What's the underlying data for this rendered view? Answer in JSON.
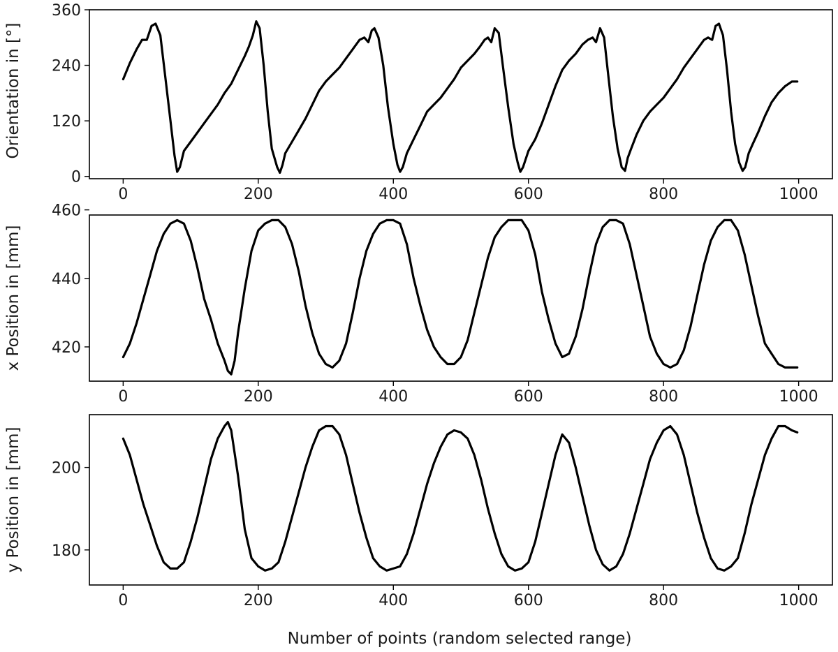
{
  "chart_data": [
    {
      "type": "line",
      "title": "",
      "xlabel": "",
      "ylabel": "Orientation in [°]",
      "xlim": [
        -50,
        1050
      ],
      "ylim": [
        -5,
        360
      ],
      "xticks": [
        0,
        200,
        400,
        600,
        800,
        1000
      ],
      "yticks": [
        0,
        120,
        240,
        360
      ],
      "grid": false,
      "series": [
        {
          "x": [
            0,
            10,
            20,
            28,
            35,
            42,
            48,
            55,
            62,
            70,
            76,
            80,
            84,
            90,
            100,
            110,
            120,
            130,
            140,
            150,
            160,
            170,
            180,
            186,
            192,
            197,
            202,
            208,
            214,
            220,
            228,
            232,
            236,
            240,
            250,
            260,
            270,
            280,
            290,
            300,
            310,
            320,
            330,
            340,
            350,
            357,
            363,
            368,
            372,
            378,
            385,
            392,
            400,
            406,
            410,
            414,
            420,
            430,
            440,
            450,
            460,
            470,
            480,
            490,
            500,
            510,
            520,
            528,
            535,
            540,
            545,
            550,
            556,
            562,
            570,
            578,
            584,
            588,
            592,
            600,
            610,
            620,
            630,
            640,
            650,
            660,
            670,
            680,
            688,
            695,
            700,
            706,
            712,
            718,
            725,
            732,
            738,
            743,
            747,
            752,
            760,
            770,
            780,
            790,
            800,
            810,
            820,
            830,
            840,
            850,
            860,
            866,
            872,
            877,
            882,
            888,
            894,
            900,
            906,
            912,
            917,
            921,
            926,
            932,
            940,
            950,
            960,
            970,
            980,
            990,
            998
          ],
          "y": [
            210,
            245,
            275,
            295,
            295,
            325,
            330,
            305,
            220,
            120,
            45,
            10,
            20,
            55,
            75,
            95,
            115,
            135,
            155,
            180,
            200,
            230,
            260,
            280,
            305,
            335,
            320,
            240,
            140,
            60,
            20,
            8,
            25,
            50,
            75,
            100,
            125,
            155,
            185,
            205,
            220,
            235,
            255,
            275,
            295,
            300,
            290,
            315,
            320,
            300,
            240,
            150,
            70,
            25,
            10,
            20,
            50,
            80,
            110,
            140,
            155,
            170,
            190,
            210,
            235,
            250,
            265,
            280,
            295,
            300,
            290,
            320,
            310,
            240,
            150,
            70,
            30,
            10,
            20,
            55,
            80,
            115,
            155,
            195,
            230,
            250,
            265,
            285,
            295,
            300,
            290,
            320,
            300,
            220,
            130,
            60,
            20,
            12,
            40,
            60,
            90,
            120,
            140,
            155,
            170,
            190,
            210,
            235,
            255,
            275,
            295,
            300,
            295,
            325,
            330,
            305,
            230,
            140,
            70,
            30,
            12,
            20,
            50,
            70,
            95,
            130,
            160,
            180,
            195,
            205,
            205
          ]
        }
      ]
    },
    {
      "type": "line",
      "title": "",
      "xlabel": "",
      "ylabel": "x Position in [mm]",
      "xlim": [
        -50,
        1050
      ],
      "ylim": [
        410,
        458.5
      ],
      "xticks": [
        0,
        200,
        400,
        600,
        800,
        1000
      ],
      "yticks": [
        420,
        440,
        460
      ],
      "grid": false,
      "series": [
        {
          "x": [
            0,
            10,
            20,
            30,
            40,
            50,
            60,
            70,
            80,
            90,
            100,
            110,
            120,
            130,
            140,
            150,
            155,
            160,
            165,
            170,
            180,
            190,
            200,
            210,
            220,
            230,
            240,
            250,
            260,
            270,
            280,
            290,
            300,
            310,
            320,
            330,
            340,
            350,
            360,
            370,
            380,
            390,
            400,
            410,
            420,
            430,
            440,
            450,
            460,
            470,
            480,
            490,
            500,
            510,
            520,
            530,
            540,
            550,
            560,
            570,
            580,
            590,
            600,
            610,
            620,
            630,
            640,
            650,
            660,
            670,
            680,
            690,
            700,
            710,
            720,
            730,
            740,
            750,
            760,
            770,
            780,
            790,
            800,
            810,
            820,
            830,
            840,
            850,
            860,
            870,
            880,
            890,
            900,
            910,
            920,
            930,
            940,
            950,
            960,
            970,
            980,
            990,
            998
          ],
          "y": [
            417,
            421,
            427,
            434,
            441,
            448,
            453,
            456,
            457,
            456,
            451,
            443,
            434,
            428,
            421,
            416,
            413,
            412,
            416,
            424,
            437,
            448,
            454,
            456,
            457,
            457,
            455,
            450,
            442,
            432,
            424,
            418,
            415,
            414,
            416,
            421,
            430,
            440,
            448,
            453,
            456,
            457,
            457,
            456,
            450,
            440,
            432,
            425,
            420,
            417,
            415,
            415,
            417,
            422,
            430,
            438,
            446,
            452,
            455,
            457,
            457,
            457,
            454,
            447,
            436,
            428,
            421,
            417,
            418,
            423,
            431,
            441,
            450,
            455,
            457,
            457,
            456,
            450,
            441,
            432,
            423,
            418,
            415,
            414,
            415,
            419,
            426,
            435,
            444,
            451,
            455,
            457,
            457,
            454,
            447,
            438,
            429,
            421,
            418,
            415,
            414,
            414,
            414
          ]
        }
      ]
    },
    {
      "type": "line",
      "title": "",
      "xlabel": "Number of points (random selected range)",
      "ylabel": "y Position in [mm]",
      "xlim": [
        -50,
        1050
      ],
      "ylim": [
        171.5,
        212.8
      ],
      "xticks": [
        0,
        200,
        400,
        600,
        800,
        1000
      ],
      "yticks": [
        180,
        200
      ],
      "grid": false,
      "series": [
        {
          "x": [
            0,
            10,
            20,
            30,
            40,
            50,
            60,
            70,
            80,
            90,
            100,
            110,
            120,
            130,
            140,
            150,
            155,
            160,
            170,
            180,
            190,
            200,
            210,
            220,
            230,
            240,
            250,
            260,
            270,
            280,
            290,
            300,
            310,
            320,
            330,
            340,
            350,
            360,
            370,
            380,
            390,
            400,
            410,
            420,
            430,
            440,
            450,
            460,
            470,
            480,
            490,
            500,
            510,
            520,
            530,
            540,
            550,
            560,
            570,
            580,
            590,
            600,
            610,
            620,
            630,
            640,
            650,
            660,
            670,
            680,
            690,
            700,
            710,
            720,
            730,
            740,
            750,
            760,
            770,
            780,
            790,
            800,
            810,
            820,
            830,
            840,
            850,
            860,
            870,
            880,
            890,
            900,
            910,
            920,
            930,
            940,
            950,
            960,
            970,
            980,
            990,
            998
          ],
          "y": [
            207,
            203,
            197,
            191,
            186,
            181,
            177,
            175.5,
            175.5,
            177,
            182,
            188,
            195,
            202,
            207,
            210,
            211,
            209,
            198,
            185,
            178,
            176,
            175,
            175.5,
            177,
            182,
            188,
            194,
            200,
            205,
            209,
            210,
            210,
            208,
            203,
            196,
            189,
            183,
            178,
            176,
            175,
            175.5,
            176,
            179,
            184,
            190,
            196,
            201,
            205,
            208,
            209,
            208.5,
            207,
            203,
            197,
            190,
            184,
            179,
            176,
            175,
            175.5,
            177,
            182,
            189,
            196,
            203,
            208,
            206,
            200,
            193,
            186,
            180,
            176.5,
            175,
            176,
            179,
            184,
            190,
            196,
            202,
            206,
            209,
            210,
            208,
            203,
            196,
            189,
            183,
            178,
            175.5,
            175,
            176,
            178,
            184,
            191,
            197,
            203,
            207,
            210,
            210,
            209,
            208.5
          ]
        }
      ]
    }
  ]
}
